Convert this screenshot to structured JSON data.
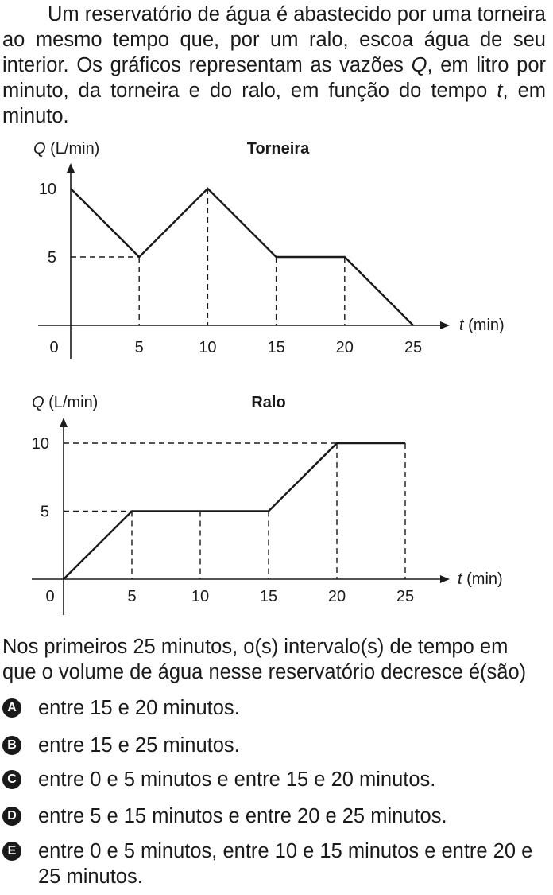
{
  "intro": {
    "part1": "Um reservatório de água é abastecido por uma torneira ao mesmo tempo que, por um ralo, escoa água de seu interior. Os gráficos representam as vazões ",
    "q": "Q",
    "part2": ", em litro por minuto, da torneira e do ralo, em função do tempo ",
    "t": "t",
    "part3": ", em minuto."
  },
  "chart_data": [
    {
      "type": "line",
      "title": "Torneira",
      "ylabel_var": "Q",
      "ylabel_unit": "(L/min)",
      "xlabel_var": "t",
      "xlabel_unit": "(min)",
      "origin_label": "0",
      "x_ticks": [
        "5",
        "10",
        "15",
        "20",
        "25"
      ],
      "y_ticks": [
        "5",
        "10"
      ],
      "xlim": [
        0,
        25
      ],
      "ylim": [
        0,
        10
      ],
      "x": [
        0,
        5,
        10,
        15,
        20,
        25
      ],
      "y": [
        10,
        5,
        10,
        5,
        5,
        0
      ]
    },
    {
      "type": "line",
      "title": "Ralo",
      "ylabel_var": "Q",
      "ylabel_unit": "(L/min)",
      "xlabel_var": "t",
      "xlabel_unit": "(min)",
      "origin_label": "0",
      "x_ticks": [
        "5",
        "10",
        "15",
        "20",
        "25"
      ],
      "y_ticks": [
        "5",
        "10"
      ],
      "xlim": [
        0,
        25
      ],
      "ylim": [
        0,
        10
      ],
      "x": [
        0,
        5,
        10,
        15,
        20,
        25
      ],
      "y": [
        0,
        5,
        5,
        5,
        10,
        10
      ]
    }
  ],
  "question": "Nos primeiros 25 minutos, o(s) intervalo(s) de tempo em que o volume de água nesse reservatório decresce é(são)",
  "options": [
    {
      "letter": "A",
      "text": "entre 15 e 20 minutos."
    },
    {
      "letter": "B",
      "text": "entre 15 e 25 minutos."
    },
    {
      "letter": "C",
      "text": "entre 0 e 5 minutos e entre 15 e 20 minutos."
    },
    {
      "letter": "D",
      "text": "entre 5 e 15 minutos e entre 20 e 25 minutos."
    },
    {
      "letter": "E",
      "text": "entre 0 e 5 minutos, entre 10 e 15 minutos e entre 20 e 25 minutos."
    }
  ]
}
